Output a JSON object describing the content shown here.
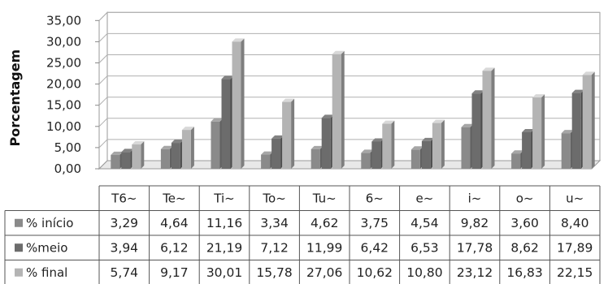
{
  "chart_data": {
    "type": "bar",
    "ylabel": "Porcentagem",
    "ylim": [
      0,
      35
    ],
    "yticks": [
      "0,00",
      "5,00",
      "10,00",
      "15,00",
      "20,00",
      "25,00",
      "30,00",
      "35,00"
    ],
    "grid": true,
    "legend_placement": "data table rows (left of table)",
    "categories": [
      "T6~",
      "Te~",
      "Ti~",
      "To~",
      "Tu~",
      "6~",
      "e~",
      "i~",
      "o~",
      "u~"
    ],
    "series": [
      {
        "name": "% início",
        "color": "#8a8a8a",
        "values": [
          3.29,
          4.64,
          11.16,
          3.34,
          4.62,
          3.75,
          4.54,
          9.82,
          3.6,
          8.4
        ],
        "labels": [
          "3,29",
          "4,64",
          "11,16",
          "3,34",
          "4,62",
          "3,75",
          "4,54",
          "9,82",
          "3,60",
          "8,40"
        ]
      },
      {
        "name": "%meio",
        "color": "#6c6c6c",
        "values": [
          3.94,
          6.12,
          21.19,
          7.12,
          11.99,
          6.42,
          6.53,
          17.78,
          8.62,
          17.89
        ],
        "labels": [
          "3,94",
          "6,12",
          "21,19",
          "7,12",
          "11,99",
          "6,42",
          "6,53",
          "17,78",
          "8,62",
          "17,89"
        ]
      },
      {
        "name": "% final",
        "color": "#b4b4b4",
        "values": [
          5.74,
          9.17,
          30.01,
          15.78,
          27.06,
          10.62,
          10.8,
          23.12,
          16.83,
          22.15
        ],
        "labels": [
          "5,74",
          "9,17",
          "30,01",
          "15,78",
          "27,06",
          "10,62",
          "10,80",
          "23,12",
          "16,83",
          "22,15"
        ]
      }
    ]
  }
}
